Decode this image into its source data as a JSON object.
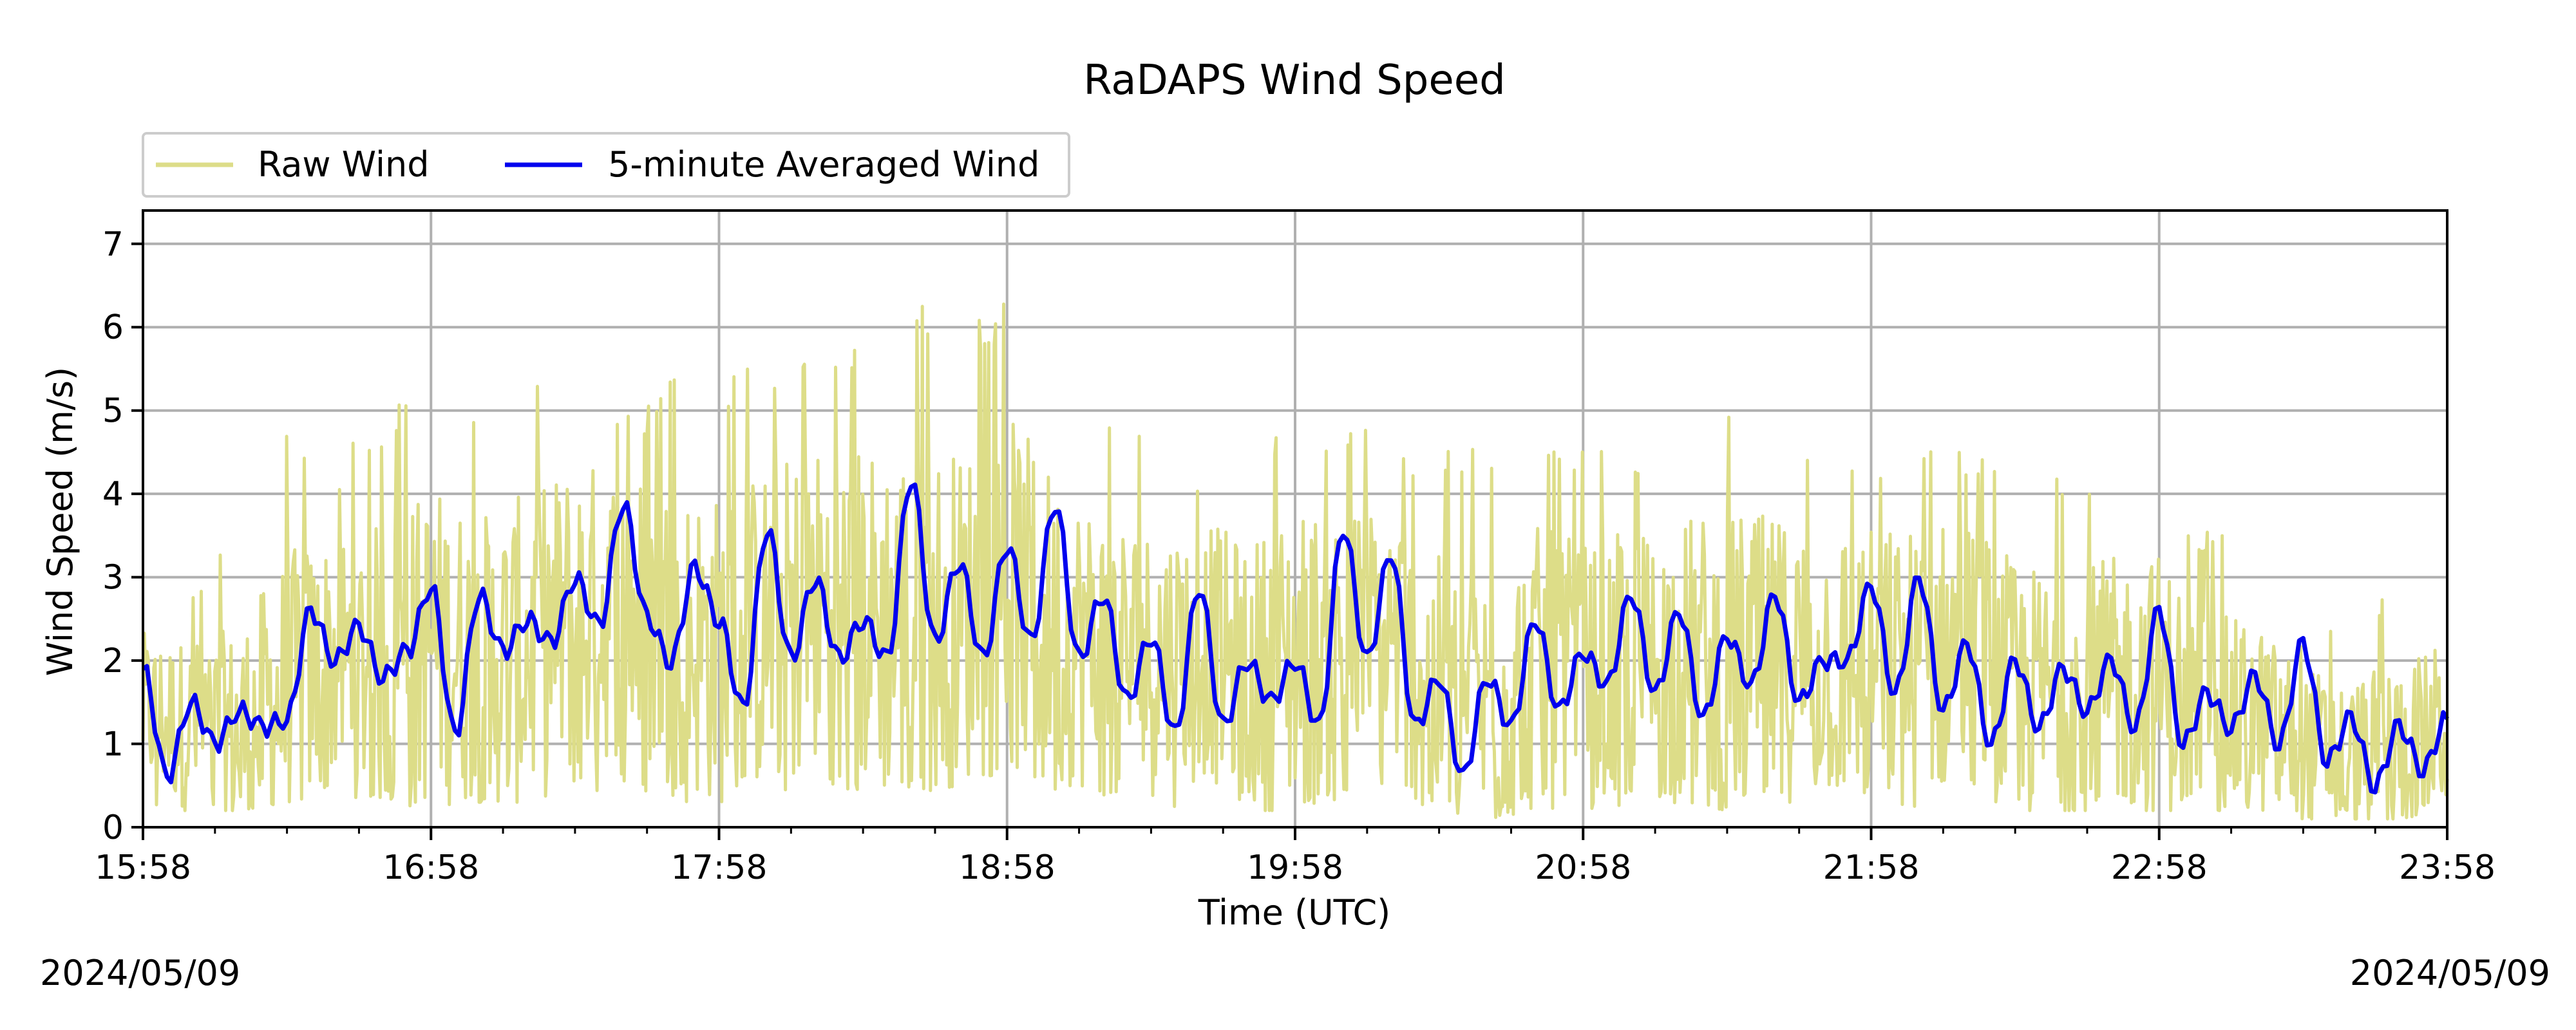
{
  "chart_data": {
    "type": "line",
    "title": "RaDAPS Wind Speed",
    "xlabel": "Time (UTC)",
    "ylabel": "Wind Speed (m/s)",
    "x_tick_labels": [
      "15:58",
      "16:58",
      "17:58",
      "18:58",
      "19:58",
      "20:58",
      "21:58",
      "22:58",
      "23:58"
    ],
    "y_ticks": [
      0,
      1,
      2,
      3,
      4,
      5,
      6,
      7
    ],
    "xlim": [
      "15:58",
      "23:58"
    ],
    "ylim": [
      0,
      7.4
    ],
    "grid": true,
    "legend_position": "top-left, above plot",
    "date_left": "2024/05/09",
    "date_right": "2024/05/09",
    "series": [
      {
        "name": "Raw Wind",
        "color": "#dddd88",
        "time": [
          "15:58",
          "16:08",
          "16:18",
          "16:28",
          "16:38",
          "16:48",
          "16:58",
          "17:08",
          "17:18",
          "17:28",
          "17:38",
          "17:48",
          "17:58",
          "18:08",
          "18:18",
          "18:28",
          "18:38",
          "18:48",
          "18:58",
          "19:08",
          "19:18",
          "19:28",
          "19:38",
          "19:48",
          "19:58",
          "20:08",
          "20:18",
          "20:28",
          "20:38",
          "20:48",
          "20:58",
          "21:08",
          "21:18",
          "21:28",
          "21:38",
          "21:48",
          "21:58",
          "22:08",
          "22:18",
          "22:28",
          "22:38",
          "22:48",
          "22:58",
          "23:08",
          "23:18",
          "23:28",
          "23:38",
          "23:48",
          "23:58"
        ],
        "values": [
          1.4,
          1.2,
          1.1,
          1.6,
          2.0,
          1.9,
          2.2,
          2.0,
          2.1,
          2.5,
          2.6,
          2.3,
          2.1,
          2.4,
          2.6,
          2.5,
          2.4,
          2.5,
          2.8,
          2.4,
          2.1,
          2.0,
          2.2,
          1.8,
          2.0,
          2.1,
          2.3,
          1.6,
          1.4,
          1.9,
          1.8,
          1.9,
          2.0,
          1.9,
          2.0,
          2.0,
          2.0,
          1.9,
          2.2,
          1.6,
          1.6,
          1.7,
          1.7,
          1.3,
          1.3,
          1.0,
          0.8,
          0.9,
          1.2
        ],
        "min": [
          0.1,
          0.2,
          0.2,
          0.3,
          0.4,
          0.3,
          0.2,
          0.3,
          0.3,
          0.4,
          0.4,
          0.3,
          0.3,
          0.4,
          0.5,
          0.4,
          0.4,
          0.5,
          0.5,
          0.4,
          0.3,
          0.2,
          0.3,
          0.2,
          0.2,
          0.3,
          0.3,
          0.2,
          0.1,
          0.2,
          0.2,
          0.2,
          0.3,
          0.2,
          0.3,
          0.3,
          0.3,
          0.2,
          0.3,
          0.2,
          0.2,
          0.2,
          0.2,
          0.2,
          0.2,
          0.1,
          0.1,
          0.1,
          0.2
        ],
        "max": [
          2.6,
          3.0,
          3.7,
          4.9,
          4.5,
          5.0,
          5.4,
          5.0,
          5.4,
          5.6,
          5.0,
          5.4,
          5.4,
          5.6,
          5.9,
          6.0,
          6.4,
          5.9,
          6.4,
          5.3,
          5.0,
          4.6,
          4.4,
          4.5,
          5.2,
          4.9,
          4.7,
          4.6,
          4.6,
          4.8,
          4.5,
          4.6,
          4.9,
          5.3,
          4.9,
          4.8,
          4.6,
          4.8,
          4.6,
          4.4,
          4.2,
          4.3,
          4.5,
          3.6,
          3.3,
          2.6,
          2.7,
          3.0,
          3.0
        ]
      },
      {
        "name": "5-minute Averaged Wind",
        "color": "#0000ee",
        "time": [
          "15:58",
          "16:03",
          "16:08",
          "16:13",
          "16:18",
          "16:23",
          "16:28",
          "16:33",
          "16:38",
          "16:43",
          "16:48",
          "16:53",
          "16:58",
          "17:03",
          "17:08",
          "17:13",
          "17:18",
          "17:23",
          "17:28",
          "17:33",
          "17:38",
          "17:43",
          "17:48",
          "17:53",
          "17:58",
          "18:03",
          "18:08",
          "18:13",
          "18:18",
          "18:23",
          "18:28",
          "18:33",
          "18:38",
          "18:43",
          "18:48",
          "18:53",
          "18:58",
          "19:03",
          "19:08",
          "19:13",
          "19:18",
          "19:23",
          "19:28",
          "19:33",
          "19:38",
          "19:43",
          "19:48",
          "19:53",
          "19:58",
          "20:03",
          "20:08",
          "20:13",
          "20:18",
          "20:23",
          "20:28",
          "20:33",
          "20:38",
          "20:43",
          "20:48",
          "20:53",
          "20:58",
          "21:03",
          "21:08",
          "21:13",
          "21:18",
          "21:23",
          "21:28",
          "21:33",
          "21:38",
          "21:43",
          "21:48",
          "21:53",
          "21:58",
          "22:03",
          "22:08",
          "22:13",
          "22:18",
          "22:23",
          "22:28",
          "22:33",
          "22:38",
          "22:43",
          "22:48",
          "22:53",
          "22:58",
          "23:03",
          "23:08",
          "23:13",
          "23:18",
          "23:23",
          "23:28",
          "23:33",
          "23:38",
          "23:43",
          "23:48",
          "23:53",
          "23:58"
        ],
        "values": [
          1.9,
          0.6,
          1.5,
          1.0,
          1.4,
          1.2,
          1.3,
          2.6,
          2.0,
          2.4,
          1.8,
          2.1,
          2.9,
          1.1,
          2.8,
          2.1,
          2.5,
          2.2,
          3.0,
          2.4,
          3.9,
          2.5,
          2.0,
          3.1,
          2.5,
          1.4,
          3.6,
          2.0,
          3.0,
          2.0,
          2.5,
          2.0,
          4.2,
          2.2,
          3.2,
          2.0,
          3.4,
          2.2,
          3.9,
          2.0,
          2.8,
          1.5,
          2.3,
          1.1,
          2.9,
          1.2,
          2.0,
          1.5,
          2.0,
          1.2,
          3.6,
          2.0,
          3.3,
          1.2,
          1.8,
          0.6,
          1.8,
          1.2,
          2.5,
          1.4,
          2.1,
          1.7,
          2.8,
          1.6,
          2.6,
          1.3,
          2.3,
          1.7,
          2.8,
          1.5,
          2.0,
          2.0,
          2.9,
          1.6,
          3.0,
          1.4,
          2.2,
          1.0,
          2.0,
          1.2,
          1.9,
          1.4,
          2.0,
          1.2,
          2.6,
          1.0,
          1.6,
          1.2,
          1.8,
          1.0,
          2.2,
          0.8,
          1.3,
          0.5,
          1.2,
          0.7,
          1.3
        ]
      }
    ]
  }
}
